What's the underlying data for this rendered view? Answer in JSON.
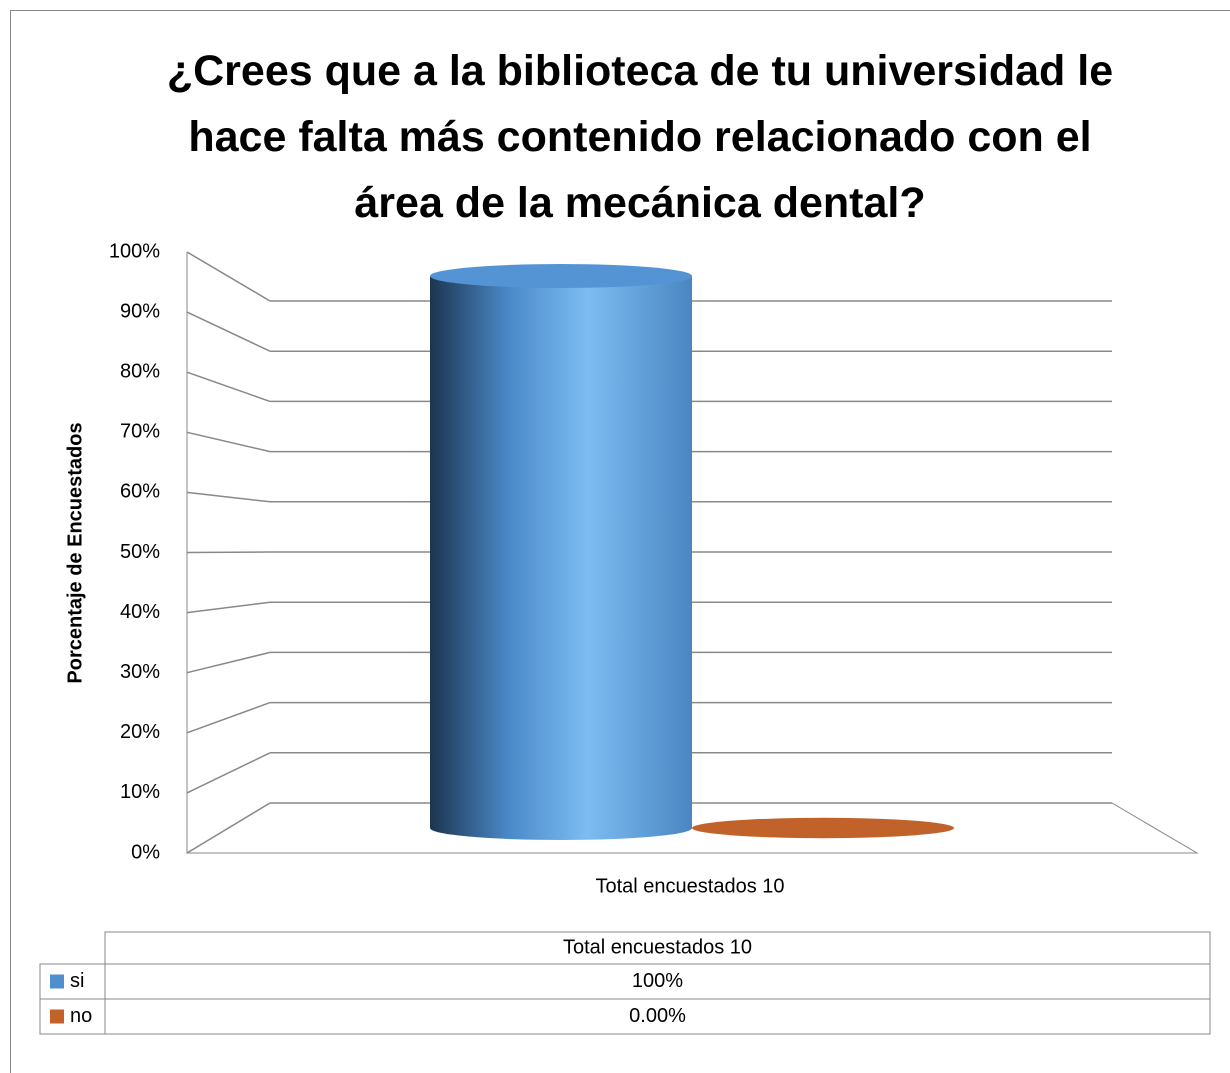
{
  "chart_data": {
    "type": "bar",
    "title": "¿Crees que a la biblioteca de tu universidad le hace falta más contenido relacionado con el área de la mecánica dental?",
    "y_axis_label": "Porcentaje de Encuestados",
    "categories": [
      "Total encuestados 10"
    ],
    "series": [
      {
        "name": "si",
        "color": "#4f8fd0",
        "values": [
          100
        ],
        "value_labels": [
          "100%"
        ]
      },
      {
        "name": "no",
        "color": "#c0622a",
        "values": [
          0
        ],
        "value_labels": [
          "0.00%"
        ]
      }
    ],
    "ylim": [
      0,
      100
    ],
    "yticks": [
      {
        "value": 0,
        "label": "0%"
      },
      {
        "value": 10,
        "label": "10%"
      },
      {
        "value": 20,
        "label": "20%"
      },
      {
        "value": 30,
        "label": "30%"
      },
      {
        "value": 40,
        "label": "40%"
      },
      {
        "value": 50,
        "label": "50%"
      },
      {
        "value": 60,
        "label": "60%"
      },
      {
        "value": 70,
        "label": "70%"
      },
      {
        "value": 80,
        "label": "80%"
      },
      {
        "value": 90,
        "label": "90%"
      },
      {
        "value": 100,
        "label": "100%"
      }
    ],
    "grid": true,
    "data_table": true
  }
}
